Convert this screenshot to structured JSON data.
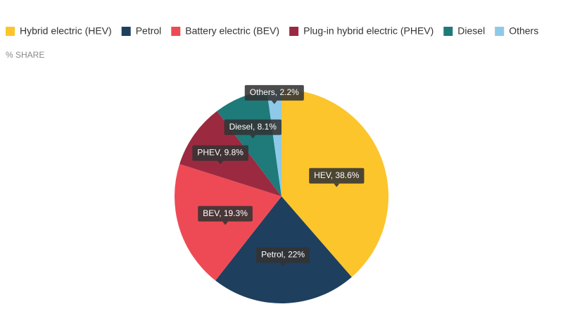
{
  "chart_data": {
    "type": "pie",
    "subtitle": "% SHARE",
    "categories": [
      "Hybrid electric (HEV)",
      "Petrol",
      "Battery electric (BEV)",
      "Plug-in hybrid electric (PHEV)",
      "Diesel",
      "Others"
    ],
    "values": [
      38.6,
      22,
      19.3,
      9.8,
      8.1,
      2.2
    ],
    "value_labels": [
      "HEV, 38.6%",
      "Petrol, 22%",
      "BEV, 19.3%",
      "PHEV, 9.8%",
      "Diesel, 8.1%",
      "Others, 2.2%"
    ],
    "colors": [
      "#fcc52c",
      "#1e3f5e",
      "#ee4a55",
      "#9b2a40",
      "#1f7a7a",
      "#8ec9e8"
    ],
    "legend": "top"
  }
}
